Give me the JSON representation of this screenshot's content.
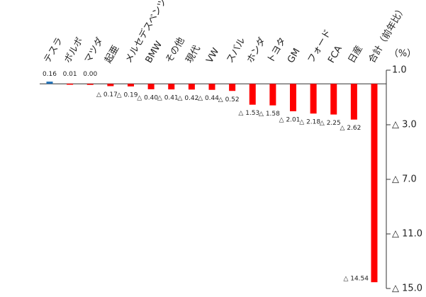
{
  "chart_data": {
    "type": "bar",
    "categories": [
      "テスラ",
      "ボルボ",
      "マツダ",
      "起亜",
      "メルセデスベンツ",
      "BMW",
      "その他",
      "現代",
      "VW",
      "スバル",
      "ホンダ",
      "トヨタ",
      "GM",
      "フォード",
      "FCA",
      "日産",
      "合計（前年比）"
    ],
    "values": [
      0.16,
      0.01,
      0.0,
      -0.17,
      -0.19,
      -0.4,
      -0.41,
      -0.42,
      -0.44,
      -0.52,
      -1.53,
      -1.58,
      -2.01,
      -2.18,
      -2.25,
      -2.62,
      -14.54
    ],
    "value_labels": [
      "0.16",
      "0.01",
      "0.00",
      "△ 0.17",
      "△ 0.19",
      "△ 0.40",
      "△ 0.41",
      "△ 0.42",
      "△ 0.44",
      "△ 0.52",
      "△ 1.53",
      "△ 1.58",
      "△ 2.01",
      "△ 2.18",
      "△ 2.25",
      "△ 2.62",
      "△ 14.54"
    ],
    "colors": [
      "#1f6fb5",
      "#ff0000",
      "#ff0000",
      "#ff0000",
      "#ff0000",
      "#ff0000",
      "#ff0000",
      "#ff0000",
      "#ff0000",
      "#ff0000",
      "#ff0000",
      "#ff0000",
      "#ff0000",
      "#ff0000",
      "#ff0000",
      "#ff0000",
      "#ff0000"
    ],
    "y_unit": "（%）",
    "ylim": [
      -15,
      1
    ],
    "yticks": [
      {
        "value": 1,
        "label": "1.0"
      },
      {
        "value": -3,
        "label": "△ 3.0"
      },
      {
        "value": -7,
        "label": "△ 7.0"
      },
      {
        "value": -11,
        "label": "△ 11.0"
      },
      {
        "value": -15,
        "label": "△ 15.0"
      }
    ],
    "y_axis_side": "right"
  }
}
